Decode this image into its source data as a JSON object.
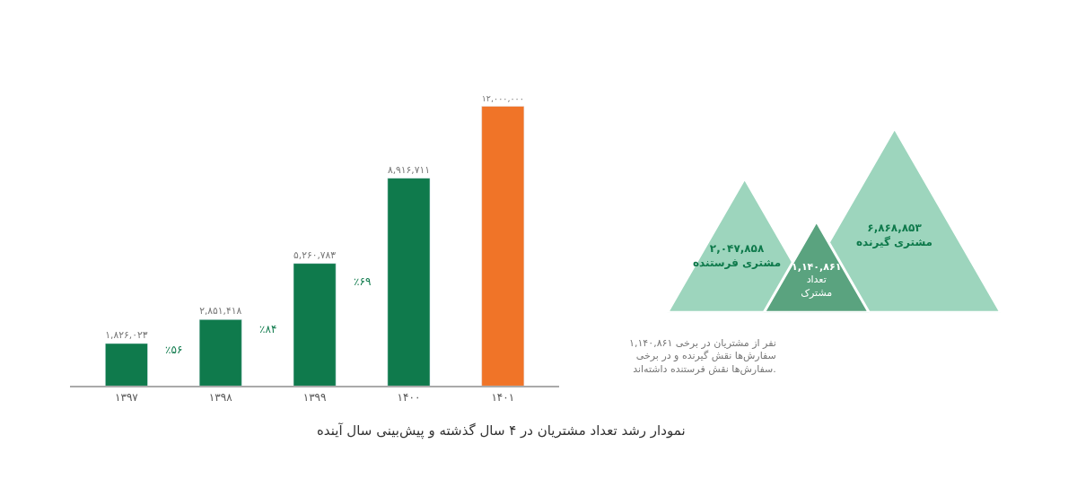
{
  "chart_data": [
    {
      "type": "bar",
      "title": "نمودار رشد تعداد مشتریان در ۴ سال گذشته و پیش‌بینی سال آینده",
      "categories": [
        "۱۳۹۷",
        "۱۳۹۸",
        "۱۳۹۹",
        "۱۴۰۰",
        "۱۴۰۱"
      ],
      "values": [
        1826023,
        2851418,
        5260783,
        8916711,
        12000000
      ],
      "value_labels": [
        "۱,۸۲۶,۰۲۳",
        "۲,۸۵۱,۴۱۸",
        "۵,۲۶۰,۷۸۳",
        "۸,۹۱۶,۷۱۱",
        "۱۲,۰۰۰,۰۰۰"
      ],
      "colors": [
        "#0f7a4c",
        "#0f7a4c",
        "#0f7a4c",
        "#0f7a4c",
        "#f07428"
      ],
      "annotations": [
        "٪۵۶",
        "٪۸۴",
        "٪۶۹"
      ],
      "tick_labels": "x"
    },
    {
      "type": "other",
      "categories": [
        "مشتری فرستنده",
        "مشتری گیرنده",
        "تعداد مشترک"
      ],
      "values": [
        2047858,
        6868853,
        1140861
      ],
      "value_labels": [
        "۲,۰۴۷,۸۵۸",
        "۶,۸۶۸,۸۵۳",
        "۱,۱۴۰,۸۶۱"
      ],
      "colors": [
        "#9dd5bd",
        "#9dd5bd",
        "#5aa37f"
      ],
      "annotations": [
        "۱,۱۴۰,۸۶۱ نفر از مشتریان در برخی سفارش‌ها نقش گیرنده و در برخی سفارش‌ها نقش فرستنده داشته‌اند."
      ]
    }
  ]
}
